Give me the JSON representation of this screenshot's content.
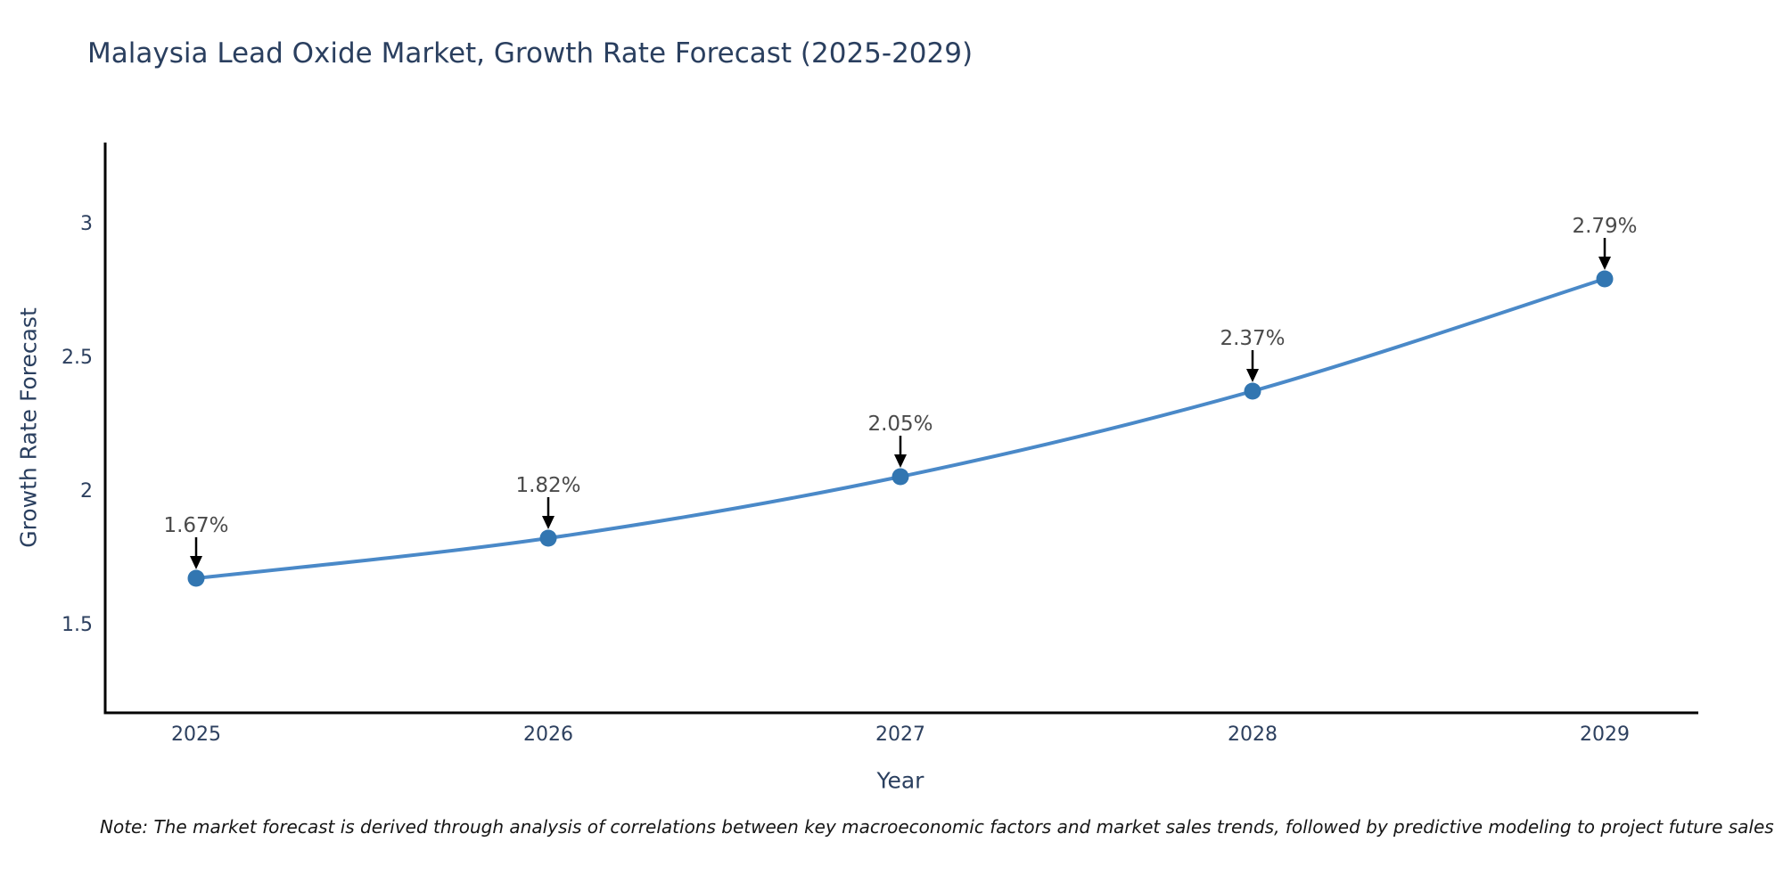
{
  "title": "Malaysia Lead Oxide Market, Growth Rate Forecast (2025-2029)",
  "footnote": "Note: The market forecast is derived through analysis of correlations between key macroeconomic factors and market sales trends, followed by predictive modeling to project future sales",
  "chart_data": {
    "type": "line",
    "title": "Malaysia Lead Oxide Market, Growth Rate Forecast (2025-2029)",
    "xlabel": "Year",
    "ylabel": "Growth Rate Forecast",
    "x": [
      2025,
      2026,
      2027,
      2028,
      2029
    ],
    "values": [
      1.67,
      1.82,
      2.05,
      2.37,
      2.79
    ],
    "point_labels": [
      "1.67%",
      "1.82%",
      "2.05%",
      "2.37%",
      "2.79%"
    ],
    "x_tick_labels": [
      "2025",
      "2026",
      "2027",
      "2028",
      "2029"
    ],
    "y_ticks": [
      1.5,
      2,
      2.5,
      3
    ],
    "y_tick_labels": [
      "1.5",
      "2",
      "2.5",
      "3"
    ],
    "ylim": [
      1.17,
      3.3
    ],
    "grid": false,
    "line_shape": "spline",
    "legend": "none",
    "annotations_have_arrows": true,
    "colors": {
      "line": "#4a89c8",
      "marker": "#3276b1",
      "axis": "#000000",
      "arrow": "#000000",
      "title_text": "#2a3f5f",
      "tick_text": "#2d405f",
      "annotation_text": "#4a4a4a",
      "background": "#ffffff"
    }
  }
}
